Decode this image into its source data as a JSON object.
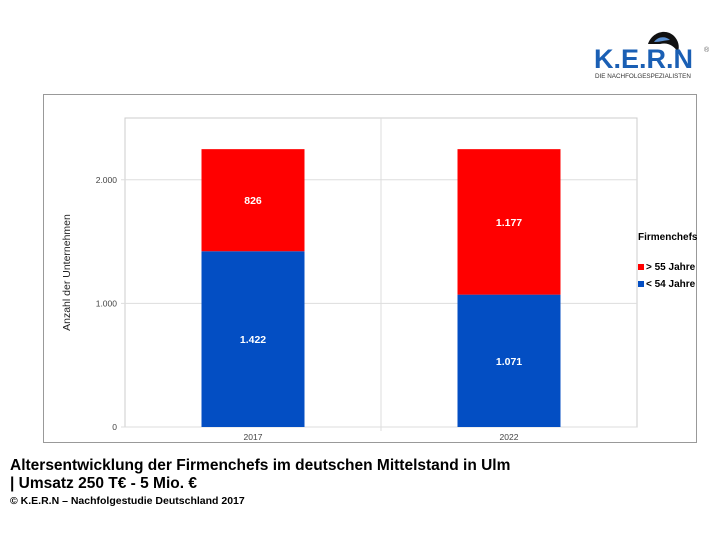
{
  "logo": {
    "text": "K.E.R.N",
    "tagline": "DIE NACHFOLGESPEZIALISTEN",
    "color": "#1a5fb4"
  },
  "caption": {
    "line1": "Altersentwicklung der Firmenchefs im deutschen Mittelstand in Ulm",
    "line2": "| Umsatz 250 T€ - 5 Mio. €",
    "source": "© K.E.R.N – Nachfolgestudie Deutschland 2017"
  },
  "chart_data": {
    "type": "bar",
    "stacked": true,
    "categories": [
      "2017",
      "2022"
    ],
    "series": [
      {
        "name": "< 54 Jahre",
        "values": [
          1422,
          1071
        ],
        "labels": [
          "1.422",
          "1.071"
        ],
        "color": "#034ec3"
      },
      {
        "name": "> 55 Jahre",
        "values": [
          826,
          1177
        ],
        "labels": [
          "826",
          "1.177"
        ],
        "color": "#ff0000"
      }
    ],
    "ylabel": "Anzahl der Unternehmen",
    "yticks": [
      0,
      1000,
      2000
    ],
    "ytick_labels": [
      "0",
      "1.000",
      "2.000"
    ],
    "ylim": [
      0,
      2500
    ],
    "grid": true,
    "legend": {
      "title": "Firmenchefs",
      "placement": "right"
    }
  }
}
